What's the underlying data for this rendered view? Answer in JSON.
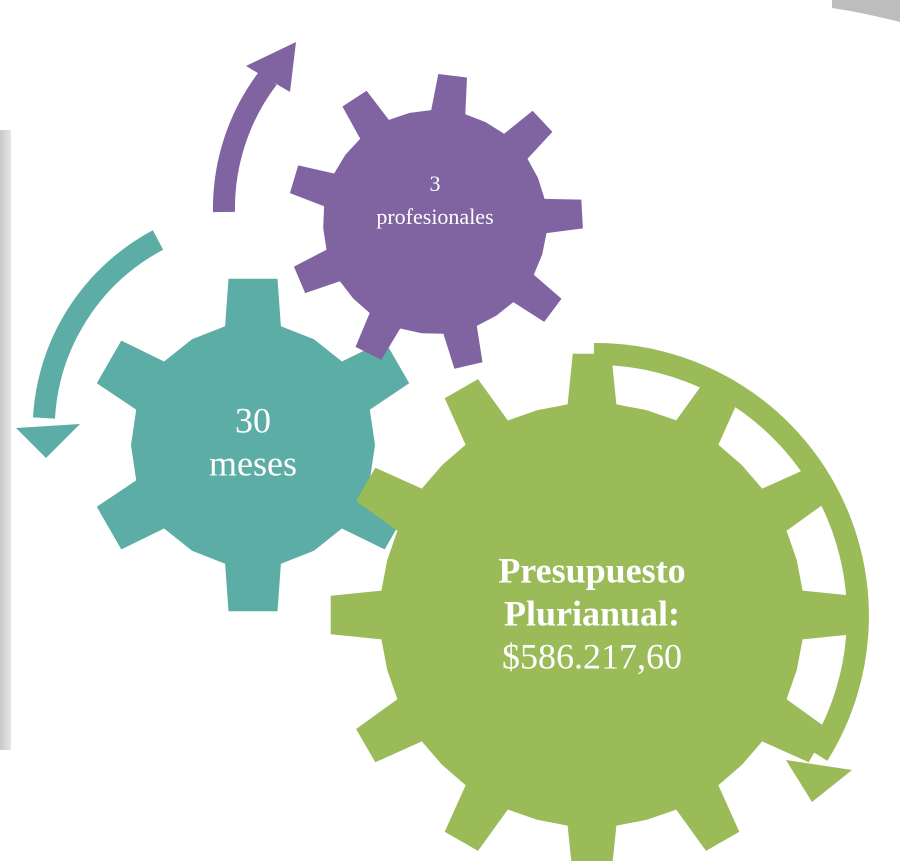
{
  "nodes": [
    {
      "lines": [
        "3",
        "profesionales"
      ]
    },
    {
      "lines": [
        "30",
        "meses"
      ]
    },
    {
      "lines": [
        "Presupuesto",
        "Plurianual:",
        "$586.217,60"
      ]
    }
  ]
}
